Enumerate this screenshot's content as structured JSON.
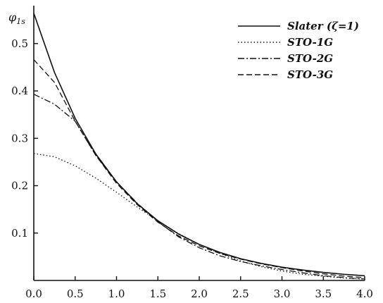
{
  "chart_data": {
    "type": "line",
    "title": "",
    "ylabel": "φ",
    "ylabel_sub": "1s",
    "xlabel": "",
    "xlim": [
      0.0,
      4.0
    ],
    "ylim": [
      0.0,
      0.58
    ],
    "xticks": [
      "0.0",
      "0.5",
      "1.0",
      "1.5",
      "2.0",
      "2.5",
      "3.0",
      "3.5",
      "4.0"
    ],
    "yticks": [
      "0.1",
      "0.2",
      "0.3",
      "0.4",
      "0.5"
    ],
    "grid": false,
    "legend_placement": "top-right",
    "x": [
      0.0,
      0.25,
      0.5,
      0.75,
      1.0,
      1.25,
      1.5,
      1.75,
      2.0,
      2.25,
      2.5,
      2.75,
      3.0,
      3.25,
      3.5,
      3.75,
      4.0
    ],
    "series": [
      {
        "name": "Slater (ζ=1)",
        "dash": "solid",
        "values": [
          0.564,
          0.439,
          0.342,
          0.267,
          0.208,
          0.162,
          0.126,
          0.098,
          0.076,
          0.059,
          0.046,
          0.036,
          0.028,
          0.022,
          0.017,
          0.013,
          0.01
        ]
      },
      {
        "name": "STO-1G",
        "dash": "dotted",
        "values": [
          0.268,
          0.261,
          0.242,
          0.216,
          0.186,
          0.155,
          0.126,
          0.099,
          0.076,
          0.057,
          0.041,
          0.029,
          0.02,
          0.013,
          0.009,
          0.005,
          0.003
        ]
      },
      {
        "name": "STO-2G",
        "dash": "dashdot",
        "values": [
          0.393,
          0.372,
          0.336,
          0.264,
          0.208,
          0.163,
          0.124,
          0.092,
          0.069,
          0.052,
          0.04,
          0.031,
          0.023,
          0.016,
          0.01,
          0.006,
          0.003
        ]
      },
      {
        "name": "STO-3G",
        "dash": "dashed",
        "values": [
          0.466,
          0.418,
          0.336,
          0.264,
          0.205,
          0.16,
          0.123,
          0.094,
          0.073,
          0.057,
          0.045,
          0.035,
          0.027,
          0.02,
          0.014,
          0.009,
          0.006
        ]
      }
    ]
  }
}
